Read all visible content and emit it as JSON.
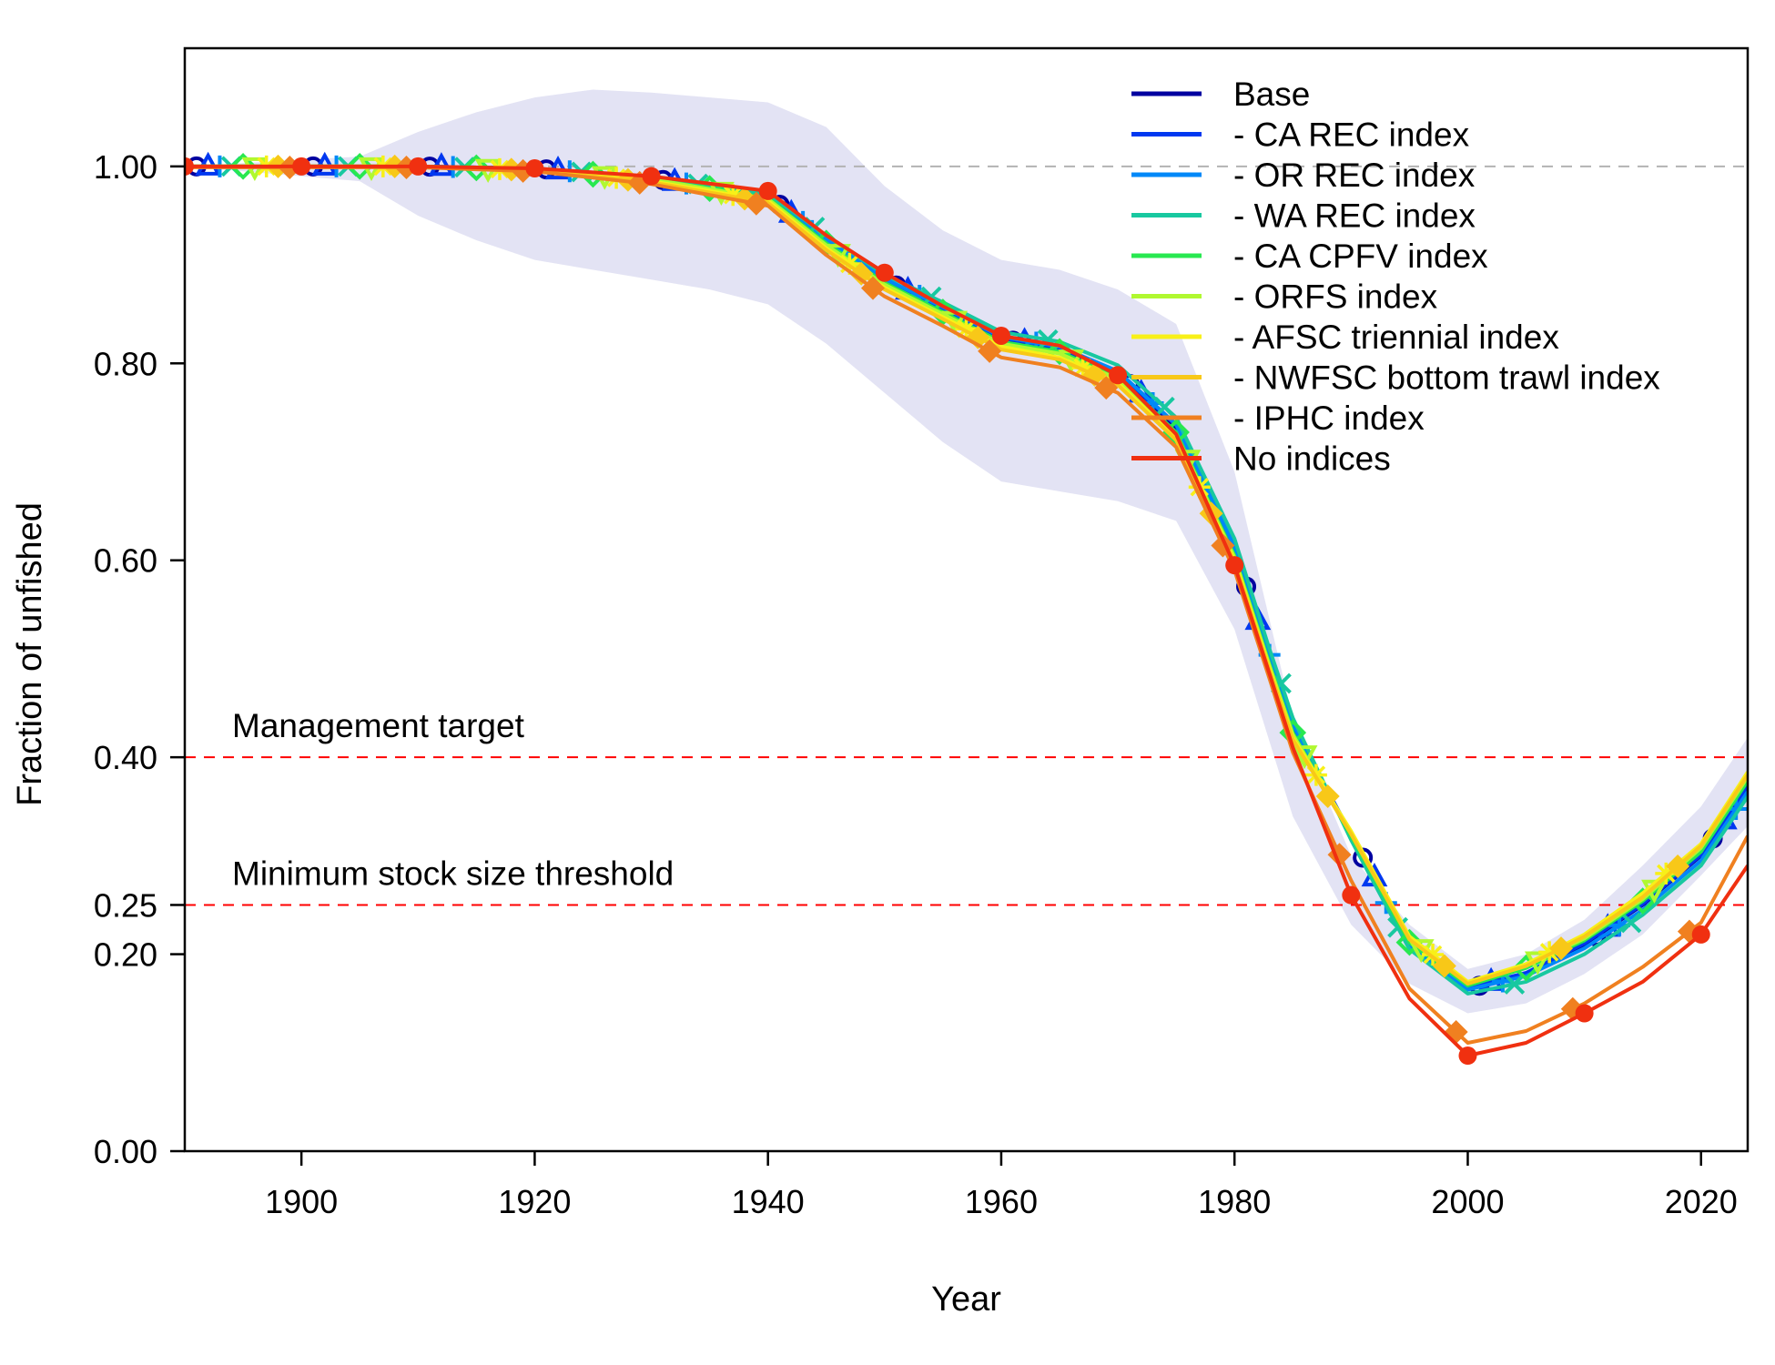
{
  "chart_data": {
    "type": "line",
    "title": "",
    "xlabel": "Year",
    "ylabel": "Fraction of unfished",
    "xlim": [
      1890,
      2024
    ],
    "ylim": [
      0,
      1.12
    ],
    "xticks": [
      1900,
      1920,
      1940,
      1960,
      1980,
      2000,
      2020
    ],
    "xtick_labels": [
      "1900",
      "1920",
      "1940",
      "1960",
      "1980",
      "2000",
      "2020"
    ],
    "yticks": [
      0.0,
      0.2,
      0.25,
      0.4,
      0.6,
      0.8,
      1.0
    ],
    "ytick_labels": [
      "0.00",
      "0.20",
      "0.25",
      "0.40",
      "0.60",
      "0.80",
      "1.00"
    ],
    "legend_position": "top-right",
    "unfished_reference": {
      "value": 1.0,
      "color": "#b3b3b3"
    },
    "reference_lines": [
      {
        "label": "Management target",
        "value": 0.4,
        "color": "#ff0000"
      },
      {
        "label": "Minimum stock size threshold",
        "value": 0.25,
        "color": "#ff0000"
      }
    ],
    "uncertainty_band": {
      "color": "#e3e3f4",
      "years": [
        1890,
        1905,
        1910,
        1915,
        1920,
        1925,
        1930,
        1935,
        1940,
        1945,
        1950,
        1955,
        1960,
        1965,
        1970,
        1975,
        1980,
        1985,
        1990,
        1995,
        2000,
        2005,
        2010,
        2015,
        2020,
        2024
      ],
      "lower": [
        1.0,
        0.985,
        0.95,
        0.925,
        0.905,
        0.895,
        0.885,
        0.875,
        0.86,
        0.82,
        0.77,
        0.72,
        0.68,
        0.67,
        0.66,
        0.64,
        0.53,
        0.34,
        0.23,
        0.17,
        0.14,
        0.15,
        0.18,
        0.22,
        0.28,
        0.33
      ],
      "upper": [
        1.0,
        1.01,
        1.035,
        1.055,
        1.07,
        1.078,
        1.075,
        1.07,
        1.065,
        1.04,
        0.98,
        0.935,
        0.905,
        0.895,
        0.875,
        0.84,
        0.69,
        0.44,
        0.3,
        0.23,
        0.185,
        0.2,
        0.235,
        0.29,
        0.35,
        0.42
      ]
    },
    "series": [
      {
        "name": "Base",
        "color": "#0000a0",
        "marker": "circle",
        "marker_offset": 1,
        "x": [
          1890,
          1910,
          1920,
          1930,
          1940,
          1945,
          1950,
          1955,
          1960,
          1965,
          1970,
          1975,
          1980,
          1983,
          1985,
          1990,
          1995,
          2000,
          2005,
          2010,
          2015,
          2020,
          2024
        ],
        "y": [
          1.0,
          1.0,
          0.998,
          0.988,
          0.97,
          0.925,
          0.885,
          0.855,
          0.825,
          0.815,
          0.79,
          0.735,
          0.61,
          0.5,
          0.43,
          0.32,
          0.21,
          0.165,
          0.18,
          0.21,
          0.25,
          0.3,
          0.37
        ]
      },
      {
        "name": "- CA REC index",
        "color": "#0038f0",
        "marker": "triangle",
        "marker_offset": 2,
        "x": [
          1890,
          1910,
          1920,
          1930,
          1940,
          1945,
          1950,
          1955,
          1960,
          1965,
          1970,
          1975,
          1980,
          1983,
          1985,
          1990,
          1995,
          2000,
          2005,
          2010,
          2015,
          2020,
          2024
        ],
        "y": [
          1.0,
          1.0,
          0.998,
          0.988,
          0.97,
          0.925,
          0.886,
          0.856,
          0.826,
          0.816,
          0.791,
          0.737,
          0.612,
          0.502,
          0.432,
          0.322,
          0.212,
          0.166,
          0.181,
          0.211,
          0.251,
          0.301,
          0.371
        ]
      },
      {
        "name": "- OR REC index",
        "color": "#0088f8",
        "marker": "plus",
        "marker_offset": 3,
        "x": [
          1890,
          1910,
          1920,
          1930,
          1940,
          1945,
          1950,
          1955,
          1960,
          1965,
          1970,
          1975,
          1980,
          1983,
          1985,
          1990,
          1995,
          2000,
          2005,
          2010,
          2015,
          2020,
          2024
        ],
        "y": [
          1.0,
          1.0,
          0.998,
          0.988,
          0.97,
          0.926,
          0.886,
          0.857,
          0.827,
          0.817,
          0.792,
          0.738,
          0.614,
          0.504,
          0.434,
          0.318,
          0.208,
          0.164,
          0.178,
          0.206,
          0.245,
          0.295,
          0.365
        ]
      },
      {
        "name": "- WA REC index",
        "color": "#18c8a0",
        "marker": "cross",
        "marker_offset": 4,
        "x": [
          1890,
          1910,
          1920,
          1930,
          1940,
          1945,
          1950,
          1955,
          1960,
          1965,
          1970,
          1975,
          1980,
          1983,
          1985,
          1990,
          1995,
          2000,
          2005,
          2010,
          2015,
          2020,
          2024
        ],
        "y": [
          1.0,
          1.0,
          0.998,
          0.989,
          0.972,
          0.93,
          0.89,
          0.862,
          0.832,
          0.822,
          0.798,
          0.745,
          0.622,
          0.51,
          0.44,
          0.316,
          0.205,
          0.16,
          0.172,
          0.2,
          0.24,
          0.29,
          0.36
        ]
      },
      {
        "name": "- CA CPFV index",
        "color": "#28e850",
        "marker": "diamond-open",
        "marker_offset": 5,
        "x": [
          1890,
          1910,
          1920,
          1930,
          1940,
          1945,
          1950,
          1955,
          1960,
          1965,
          1970,
          1975,
          1980,
          1983,
          1985,
          1990,
          1995,
          2000,
          2005,
          2010,
          2015,
          2020,
          2024
        ],
        "y": [
          1.0,
          1.0,
          0.997,
          0.987,
          0.968,
          0.922,
          0.882,
          0.852,
          0.822,
          0.812,
          0.786,
          0.73,
          0.605,
          0.495,
          0.425,
          0.32,
          0.212,
          0.168,
          0.186,
          0.214,
          0.254,
          0.304,
          0.376
        ]
      },
      {
        "name": "- ORFS index",
        "color": "#b0f830",
        "marker": "triangle-down",
        "marker_offset": 6,
        "x": [
          1890,
          1910,
          1920,
          1930,
          1940,
          1945,
          1950,
          1955,
          1960,
          1965,
          1970,
          1975,
          1980,
          1983,
          1985,
          1990,
          1995,
          2000,
          2005,
          2010,
          2015,
          2020,
          2024
        ],
        "y": [
          1.0,
          1.0,
          0.997,
          0.987,
          0.967,
          0.92,
          0.88,
          0.85,
          0.82,
          0.81,
          0.784,
          0.728,
          0.603,
          0.493,
          0.423,
          0.322,
          0.215,
          0.17,
          0.188,
          0.216,
          0.256,
          0.308,
          0.38
        ]
      },
      {
        "name": "- AFSC triennial index",
        "color": "#f8f018",
        "marker": "asterisk",
        "marker_offset": 7,
        "x": [
          1890,
          1910,
          1920,
          1930,
          1940,
          1945,
          1950,
          1955,
          1960,
          1965,
          1970,
          1975,
          1980,
          1983,
          1985,
          1990,
          1995,
          2000,
          2005,
          2010,
          2015,
          2020,
          2024
        ],
        "y": [
          1.0,
          1.0,
          0.996,
          0.985,
          0.965,
          0.917,
          0.877,
          0.847,
          0.817,
          0.806,
          0.78,
          0.724,
          0.6,
          0.49,
          0.42,
          0.325,
          0.218,
          0.172,
          0.19,
          0.22,
          0.262,
          0.312,
          0.385
        ]
      },
      {
        "name": "- NWFSC bottom trawl index",
        "color": "#f8c818",
        "marker": "diamond",
        "marker_offset": 8,
        "x": [
          1890,
          1910,
          1920,
          1930,
          1940,
          1945,
          1950,
          1955,
          1960,
          1965,
          1970,
          1975,
          1980,
          1983,
          1985,
          1990,
          1995,
          2000,
          2005,
          2010,
          2015,
          2020,
          2024
        ],
        "y": [
          1.0,
          1.0,
          0.996,
          0.984,
          0.963,
          0.915,
          0.875,
          0.845,
          0.814,
          0.804,
          0.778,
          0.722,
          0.598,
          0.488,
          0.418,
          0.322,
          0.215,
          0.17,
          0.188,
          0.218,
          0.258,
          0.31,
          0.382
        ]
      },
      {
        "name": "- IPHC index",
        "color": "#f08020",
        "marker": "diamond",
        "marker_offset": 9,
        "x": [
          1890,
          1910,
          1920,
          1930,
          1940,
          1945,
          1950,
          1955,
          1960,
          1965,
          1970,
          1975,
          1980,
          1983,
          1985,
          1990,
          1995,
          2000,
          2005,
          2010,
          2015,
          2020,
          2024
        ],
        "y": [
          0.999,
          0.999,
          0.995,
          0.982,
          0.96,
          0.91,
          0.868,
          0.838,
          0.806,
          0.796,
          0.77,
          0.715,
          0.59,
          0.48,
          0.405,
          0.275,
          0.165,
          0.11,
          0.122,
          0.15,
          0.187,
          0.232,
          0.32
        ]
      },
      {
        "name": "No indices",
        "color": "#f03010",
        "marker": "circle-filled",
        "marker_offset": 0,
        "x": [
          1890,
          1910,
          1920,
          1930,
          1940,
          1945,
          1950,
          1955,
          1960,
          1965,
          1970,
          1975,
          1980,
          1983,
          1985,
          1990,
          1995,
          2000,
          2005,
          2010,
          2015,
          2020,
          2024
        ],
        "y": [
          1.0,
          1.0,
          0.998,
          0.99,
          0.975,
          0.93,
          0.892,
          0.858,
          0.828,
          0.818,
          0.788,
          0.728,
          0.595,
          0.485,
          0.41,
          0.26,
          0.155,
          0.097,
          0.11,
          0.14,
          0.172,
          0.22,
          0.29
        ]
      }
    ]
  }
}
